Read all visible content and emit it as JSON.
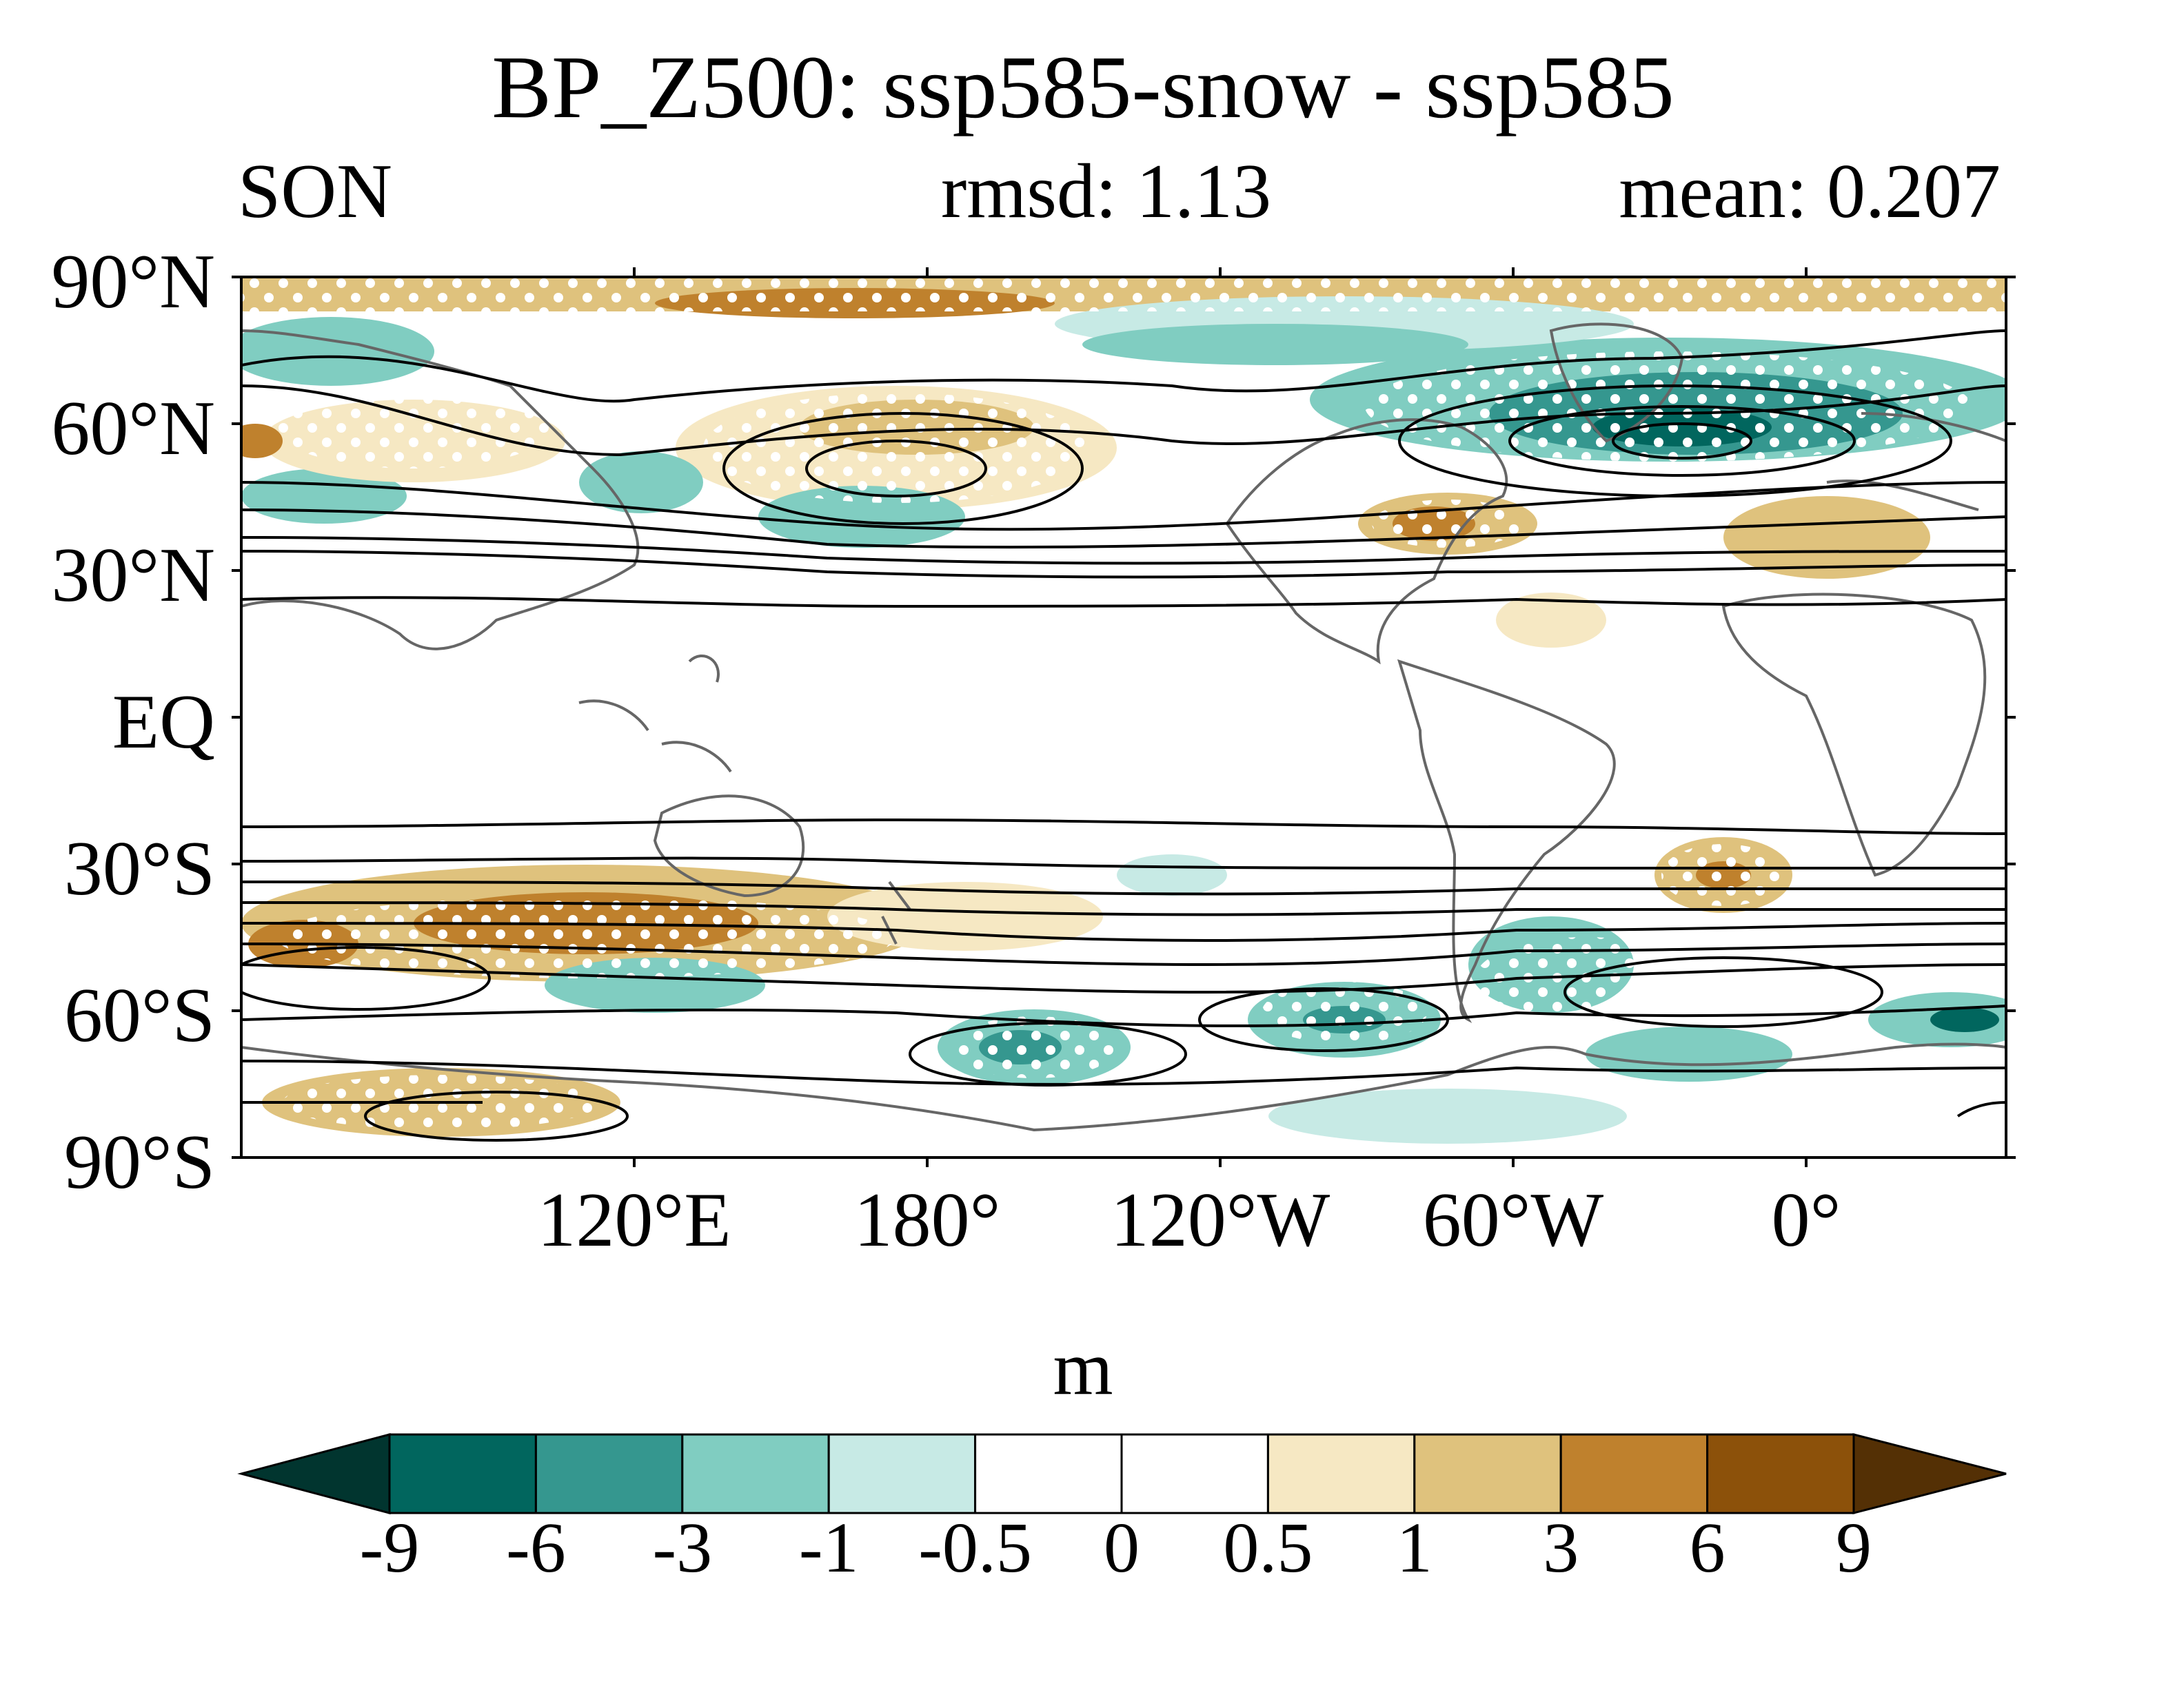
{
  "title": "BP_Z500: ssp585-snow - ssp585",
  "season": "SON",
  "rmsd": "rmsd: 1.13",
  "mean": "mean: 0.207",
  "lat_labels": [
    "90°N",
    "60°N",
    "30°N",
    "EQ",
    "30°S",
    "60°S",
    "90°S"
  ],
  "lon_labels": [
    "120°E",
    "180°",
    "120°W",
    "60°W",
    "0°"
  ],
  "colorbar": {
    "unit": "m",
    "levels": [
      "-9",
      "-6",
      "-3",
      "-1",
      "-0.5",
      "0",
      "0.5",
      "1",
      "3",
      "6",
      "9"
    ],
    "colors": [
      "#01352f",
      "#01665e",
      "#35978f",
      "#80cdc1",
      "#c7eae5",
      "#ffffff",
      "#ffffff",
      "#f6e8c3",
      "#dfc27d",
      "#bf812d",
      "#8c510a",
      "#543005"
    ]
  },
  "map": {
    "projection": "equirectangular",
    "lon_range": [
      40,
      400
    ],
    "lat_range": [
      -90,
      90
    ],
    "stippling": "white dots mark significant areas",
    "contours": "black lines show climatological Z500",
    "coastline_color": "#666666"
  }
}
